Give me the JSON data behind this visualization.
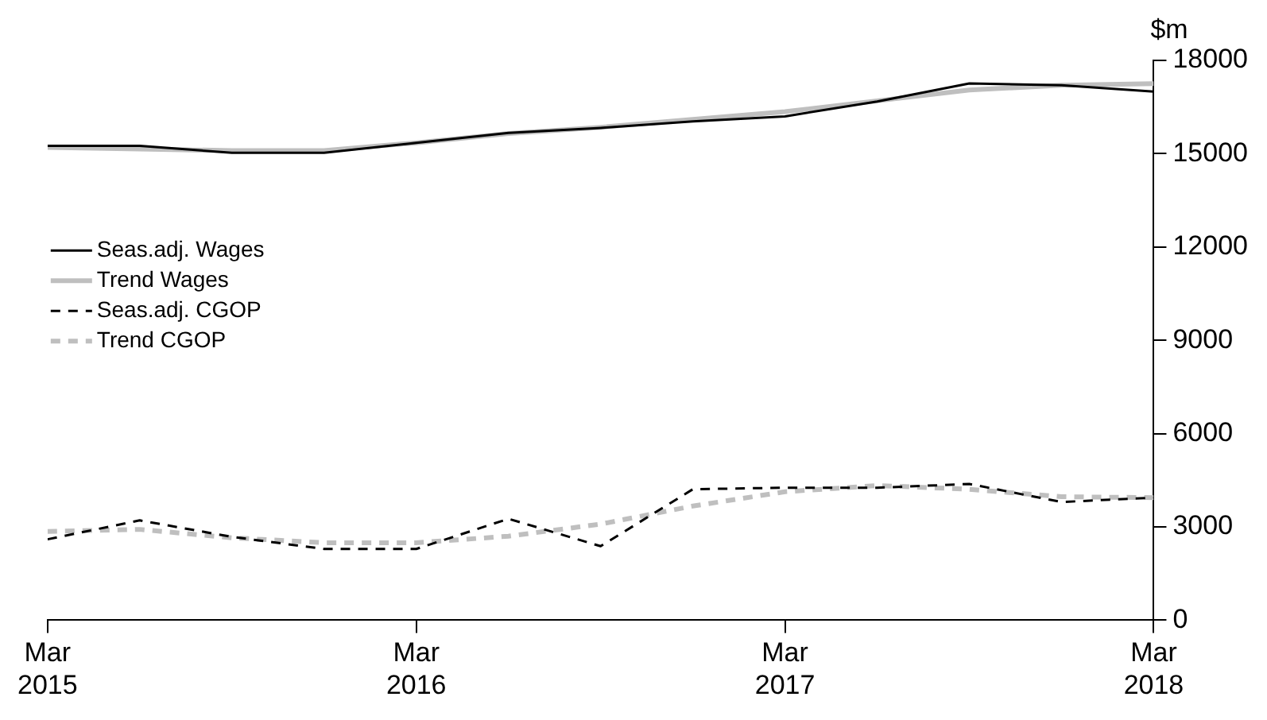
{
  "chart_data": {
    "type": "line",
    "ylabel": "$m",
    "x": [
      "2015-03",
      "2015-06",
      "2015-09",
      "2015-12",
      "2016-03",
      "2016-06",
      "2016-09",
      "2016-12",
      "2017-03",
      "2017-06",
      "2017-09",
      "2017-12",
      "2018-03"
    ],
    "series": [
      {
        "name": "Seas.adj. Wages",
        "color": "#000000",
        "line_style": "solid",
        "values": [
          15250,
          15250,
          15030,
          15030,
          15350,
          15670,
          15830,
          16040,
          16200,
          16680,
          17260,
          17200,
          17000
        ]
      },
      {
        "name": "Trend Wages",
        "color": "#bfbfbf",
        "line_style": "solid",
        "values": [
          15200,
          15150,
          15100,
          15100,
          15350,
          15650,
          15850,
          16100,
          16350,
          16700,
          17050,
          17200,
          17250
        ]
      },
      {
        "name": "Seas.adj. CGOP",
        "color": "#000000",
        "line_style": "dashed",
        "values": [
          2600,
          3210,
          2680,
          2290,
          2290,
          3260,
          2380,
          4210,
          4260,
          4260,
          4380,
          3800,
          3940
        ]
      },
      {
        "name": "Trend CGOP",
        "color": "#bfbfbf",
        "line_style": "dashed",
        "values": [
          2850,
          2920,
          2650,
          2490,
          2490,
          2700,
          3090,
          3670,
          4130,
          4330,
          4210,
          3970,
          3940
        ]
      }
    ],
    "xlim": [
      "2015-03",
      "2018-03"
    ],
    "xticks": [
      {
        "value": "2015-03",
        "label": "Mar 2015"
      },
      {
        "value": "2016-03",
        "label": "Mar 2016"
      },
      {
        "value": "2017-03",
        "label": "Mar 2017"
      },
      {
        "value": "2018-03",
        "label": "Mar 2018"
      }
    ],
    "ylim": [
      0,
      18000
    ],
    "yticks": [
      0,
      3000,
      6000,
      9000,
      12000,
      15000,
      18000
    ],
    "grid": false,
    "legend": "left",
    "marker": "none"
  }
}
